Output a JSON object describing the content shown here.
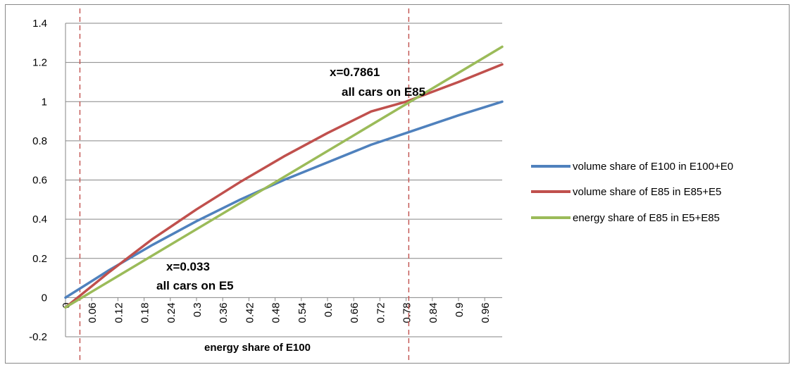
{
  "chart_data": {
    "type": "line",
    "title": "",
    "xlabel": "energy share of E100",
    "ylabel": "",
    "xlim": [
      0,
      1
    ],
    "ylim": [
      -0.2,
      1.4
    ],
    "y_ticks": [
      "-0.2",
      "0",
      "0.2",
      "0.4",
      "0.6",
      "0.8",
      "1",
      "1.2",
      "1.4"
    ],
    "x_ticks": [
      "0",
      "0.06",
      "0.12",
      "0.18",
      "0.24",
      "0.3",
      "0.36",
      "0.42",
      "0.48",
      "0.54",
      "0.6",
      "0.66",
      "0.72",
      "0.78",
      "0.84",
      "0.9",
      "0.96"
    ],
    "grid": "horizontal",
    "legend_position": "right",
    "series": [
      {
        "name": "volume share of E100 in E100+E0",
        "color": "#4f81bd",
        "x": [
          0,
          0.1,
          0.2,
          0.3,
          0.4,
          0.5,
          0.6,
          0.7,
          0.78,
          0.9,
          1.0
        ],
        "y": [
          0,
          0.14,
          0.27,
          0.39,
          0.5,
          0.6,
          0.69,
          0.78,
          0.84,
          0.93,
          1.0
        ]
      },
      {
        "name": "volume share of E85 in E85+E5",
        "color": "#c0504d",
        "x": [
          0,
          0.1,
          0.2,
          0.3,
          0.4,
          0.5,
          0.6,
          0.7,
          0.78,
          0.9,
          1.0
        ],
        "y": [
          -0.05,
          0.13,
          0.3,
          0.45,
          0.59,
          0.72,
          0.84,
          0.95,
          1.0,
          1.1,
          1.19
        ]
      },
      {
        "name": "energy share of E85 in E5+E85",
        "color": "#9bbb59",
        "x": [
          0,
          1.0
        ],
        "y": [
          -0.05,
          1.28
        ]
      }
    ],
    "vlines": [
      {
        "x": 0.033,
        "color": "#c0504d"
      },
      {
        "x": 0.7861,
        "color": "#c0504d"
      }
    ],
    "annotations": [
      {
        "line1": "x=0.7861",
        "line2": "all cars on E85"
      },
      {
        "line1": "x=0.033",
        "line2": "all cars on E5"
      }
    ]
  }
}
